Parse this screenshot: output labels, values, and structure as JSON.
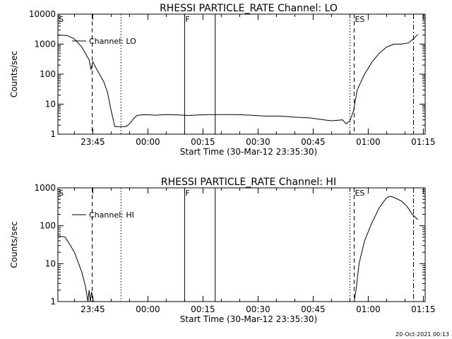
{
  "figure": {
    "stamp": "20-Oct-2021 00:13"
  },
  "chart_data": [
    {
      "type": "line",
      "title": "RHESSI PARTICLE_RATE Channel: LO",
      "xlabel": "Start Time (30-Mar-12 23:35:30)",
      "ylabel": "Counts/sec",
      "yscale": "log",
      "xlim": [
        "23:35:30",
        "01:15:30"
      ],
      "ylim": [
        1,
        10000
      ],
      "x_ticks": [
        "23:45",
        "00:00",
        "00:15",
        "00:30",
        "00:45",
        "01:00",
        "01:15"
      ],
      "y_ticks": [
        "1",
        "10",
        "100",
        "1000",
        "10000"
      ],
      "legend": {
        "position": "top-left",
        "entries": [
          "Channel: LO"
        ]
      },
      "series": [
        {
          "name": "Channel: LO",
          "points": [
            [
              "23:35:30",
              2000
            ],
            [
              "23:38:00",
              1950
            ],
            [
              "23:40:00",
              1500
            ],
            [
              "23:42:00",
              800
            ],
            [
              "23:44:00",
              300
            ],
            [
              "23:44:30",
              140
            ],
            [
              "23:45:00",
              260
            ],
            [
              "23:46:00",
              150
            ],
            [
              "23:48:00",
              55
            ],
            [
              "23:49:00",
              25
            ],
            [
              "23:50:00",
              6
            ],
            [
              "23:51:00",
              1.8
            ],
            [
              "23:54:00",
              1.8
            ],
            [
              "23:55:00",
              2.2
            ],
            [
              "23:56:00",
              3.2
            ],
            [
              "23:57:00",
              4.2
            ],
            [
              "23:59:00",
              4.5
            ],
            [
              "00:02:00",
              4.3
            ],
            [
              "00:05:00",
              4.5
            ],
            [
              "00:08:00",
              4.4
            ],
            [
              "00:11:00",
              4.2
            ],
            [
              "00:14:00",
              4.4
            ],
            [
              "00:17:00",
              4.5
            ],
            [
              "00:20:00",
              4.5
            ],
            [
              "00:24:00",
              4.5
            ],
            [
              "00:28:00",
              4.3
            ],
            [
              "00:32:00",
              4.0
            ],
            [
              "00:36:00",
              4.0
            ],
            [
              "00:40:00",
              3.7
            ],
            [
              "00:44:00",
              3.5
            ],
            [
              "00:48:00",
              3.0
            ],
            [
              "00:50:00",
              2.8
            ],
            [
              "00:53:00",
              3.0
            ],
            [
              "00:54:00",
              2.2
            ],
            [
              "00:55:00",
              2.8
            ],
            [
              "00:56:00",
              6
            ],
            [
              "00:57:00",
              30
            ],
            [
              "00:59:00",
              100
            ],
            [
              "01:01:00",
              250
            ],
            [
              "01:03:00",
              500
            ],
            [
              "01:05:00",
              800
            ],
            [
              "01:07:00",
              1000
            ],
            [
              "01:09:00",
              1000
            ],
            [
              "01:11:00",
              1100
            ],
            [
              "01:12:00",
              1400
            ],
            [
              "01:13:30",
              2100
            ]
          ]
        }
      ],
      "markers": [
        {
          "time": "23:35:30",
          "style": "solid",
          "label": "S"
        },
        {
          "time": "23:44:50",
          "style": "dashed",
          "label": ""
        },
        {
          "time": "23:52:40",
          "style": "dotted",
          "label": ""
        },
        {
          "time": "00:10:00",
          "style": "solid",
          "label": "F"
        },
        {
          "time": "00:18:20",
          "style": "solid",
          "label": ""
        },
        {
          "time": "00:55:00",
          "style": "dotted",
          "label": ""
        },
        {
          "time": "00:56:10",
          "style": "dashed",
          "label": "ES"
        },
        {
          "time": "01:12:20",
          "style": "dashdot",
          "label": ""
        }
      ]
    },
    {
      "type": "line",
      "title": "RHESSI PARTICLE_RATE Channel: HI",
      "xlabel": "Start Time (30-Mar-12 23:35:30)",
      "ylabel": "Counts/sec",
      "yscale": "log",
      "xlim": [
        "23:35:30",
        "01:15:30"
      ],
      "ylim": [
        1,
        1000
      ],
      "x_ticks": [
        "23:45",
        "00:00",
        "00:15",
        "00:30",
        "00:45",
        "01:00",
        "01:15"
      ],
      "y_ticks": [
        "1",
        "10",
        "100",
        "1000"
      ],
      "legend": {
        "position": "top-left",
        "entries": [
          "Channel: HI"
        ]
      },
      "series": [
        {
          "name": "Channel: HI",
          "points": [
            [
              "23:35:30",
              55
            ],
            [
              "23:37:30",
              50
            ],
            [
              "23:38:30",
              35
            ],
            [
              "23:40:00",
              20
            ],
            [
              "23:42:00",
              6
            ],
            [
              "23:43:00",
              2.5
            ],
            [
              "23:43:40",
              1
            ],
            [
              "23:44:00",
              2
            ],
            [
              "23:44:20",
              1
            ],
            [
              "23:44:40",
              1.8
            ],
            [
              "23:45:10",
              1
            ]
          ]
        },
        {
          "name": "Channel: HI",
          "points": [
            [
              "00:56:10",
              1
            ],
            [
              "00:56:40",
              2
            ],
            [
              "00:57:30",
              10
            ],
            [
              "00:59:00",
              40
            ],
            [
              "01:01:00",
              120
            ],
            [
              "01:03:00",
              300
            ],
            [
              "01:05:00",
              550
            ],
            [
              "01:06:00",
              600
            ],
            [
              "01:07:00",
              560
            ],
            [
              "01:09:00",
              450
            ],
            [
              "01:10:30",
              330
            ],
            [
              "01:12:00",
              200
            ],
            [
              "01:13:30",
              145
            ]
          ]
        }
      ],
      "markers": [
        {
          "time": "23:35:30",
          "style": "solid",
          "label": "S"
        },
        {
          "time": "23:44:50",
          "style": "dashed",
          "label": ""
        },
        {
          "time": "23:52:40",
          "style": "dotted",
          "label": ""
        },
        {
          "time": "00:10:00",
          "style": "solid",
          "label": "F"
        },
        {
          "time": "00:18:20",
          "style": "solid",
          "label": ""
        },
        {
          "time": "00:55:00",
          "style": "dotted",
          "label": ""
        },
        {
          "time": "00:56:10",
          "style": "dashed",
          "label": "ES"
        },
        {
          "time": "01:12:20",
          "style": "dashdot",
          "label": ""
        }
      ]
    }
  ]
}
